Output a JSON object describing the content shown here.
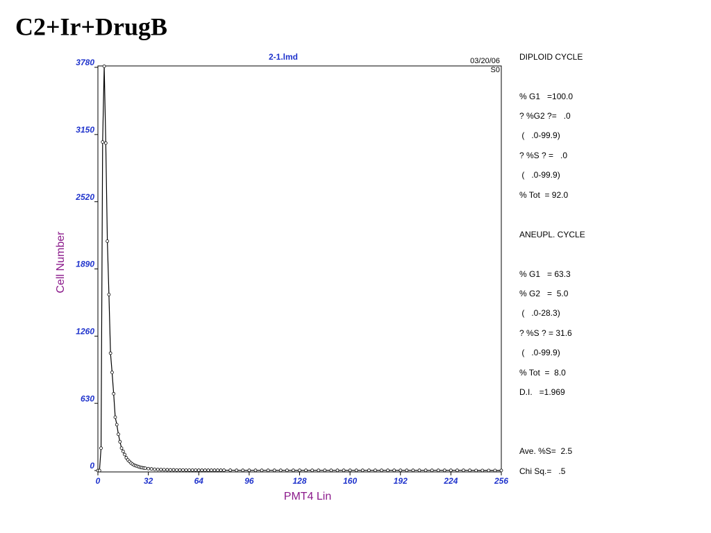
{
  "page_title": "C2+Ir+DrugB",
  "stats": [
    "DIPLOID CYCLE",
    "% G1   =100.0",
    "? %G2 ?=   .0",
    " (   .0-99.9)",
    "? %S ? =   .0",
    " (   .0-99.9)",
    "% Tot  = 92.0",
    "ANEUPL. CYCLE",
    "% G1   = 63.3",
    "% G2   =  5.0",
    " (   .0-28.3)",
    "? %S ? = 31.6",
    " (   .0-99.9)",
    "% Tot  =  8.0",
    "D.I.   =1.969",
    "Ave. %S=  2.5",
    "Chi Sq.=   .5"
  ],
  "stat_colors": [
    "#000000",
    "#000000",
    "#e8820c",
    "#000000",
    "#000000",
    "#000000",
    "#000000",
    "#000000",
    "#000000",
    "#000000",
    "#000000",
    "#000000",
    "#000000",
    "#000000",
    "#000000",
    "#000000",
    "#000000"
  ],
  "chart_data": {
    "type": "line",
    "title": "2-1.lmd",
    "date": "03/20/06",
    "tag": "S0",
    "x_label": "PMT4 Lin",
    "y_label": "Cell Number",
    "xlim": [
      0,
      256
    ],
    "xticks": [
      0,
      32,
      64,
      96,
      128,
      160,
      192,
      224,
      256
    ],
    "ylim": [
      0,
      3780
    ],
    "yticks": [
      0,
      630,
      1260,
      1890,
      2520,
      3150,
      3780
    ],
    "markers": true,
    "color": "#000000",
    "x": [
      0,
      1,
      2,
      3,
      4,
      5,
      6,
      7,
      8,
      9,
      10,
      11,
      12,
      13,
      14,
      15,
      16,
      17,
      18,
      19,
      20,
      21,
      22,
      23,
      24,
      25,
      26,
      27,
      28,
      29,
      30,
      32,
      34,
      36,
      38,
      40,
      42,
      44,
      46,
      48,
      50,
      52,
      54,
      56,
      58,
      60,
      62,
      64,
      66,
      68,
      70,
      72,
      74,
      76,
      78,
      80,
      84,
      88,
      92,
      96,
      100,
      104,
      108,
      112,
      116,
      120,
      124,
      128,
      132,
      136,
      140,
      144,
      148,
      152,
      156,
      160,
      164,
      168,
      172,
      176,
      180,
      184,
      188,
      192,
      196,
      200,
      204,
      208,
      212,
      216,
      220,
      224,
      228,
      232,
      236,
      240,
      244,
      248,
      252,
      256
    ],
    "values": [
      0,
      0,
      210,
      3080,
      3790,
      3070,
      2150,
      1650,
      1100,
      920,
      720,
      500,
      430,
      340,
      270,
      210,
      180,
      150,
      120,
      100,
      85,
      70,
      60,
      50,
      45,
      40,
      35,
      30,
      27,
      24,
      22,
      18,
      15,
      12,
      10,
      9,
      8,
      7,
      6,
      6,
      5,
      5,
      5,
      4,
      4,
      4,
      4,
      3,
      3,
      3,
      3,
      3,
      3,
      3,
      3,
      3,
      3,
      2,
      2,
      2,
      2,
      2,
      2,
      2,
      2,
      2,
      2,
      2,
      2,
      2,
      2,
      2,
      2,
      2,
      2,
      2,
      2,
      2,
      2,
      2,
      2,
      2,
      2,
      2,
      2,
      2,
      2,
      2,
      2,
      2,
      2,
      2,
      2,
      2,
      2,
      1,
      1,
      1,
      1,
      1
    ]
  }
}
